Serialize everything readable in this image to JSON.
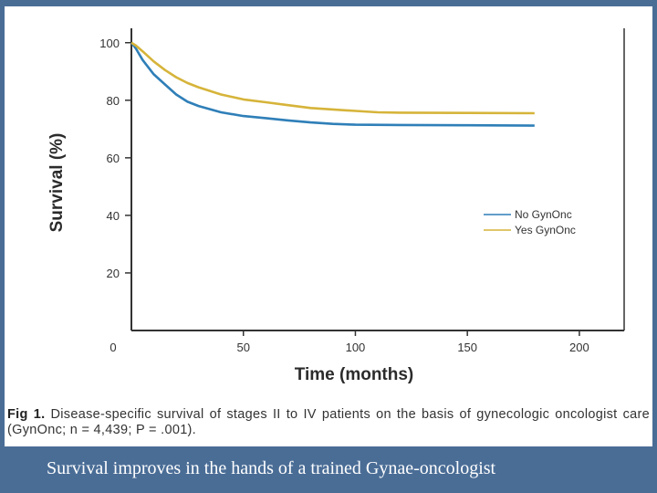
{
  "chart_data": {
    "type": "line",
    "title": "",
    "xlabel": "Time (months)",
    "ylabel": "Survival (%)",
    "xlim": [
      0,
      220
    ],
    "ylim": [
      0,
      105
    ],
    "xticks": [
      "0",
      "50",
      "100",
      "150",
      "200"
    ],
    "yticks": [
      "20",
      "40",
      "60",
      "80",
      "100"
    ],
    "legend_position": "right",
    "series": [
      {
        "name": "No GynOnc",
        "color": "#2f7fb8",
        "x": [
          0,
          2,
          5,
          10,
          15,
          20,
          25,
          30,
          40,
          50,
          60,
          70,
          80,
          90,
          100,
          120,
          150,
          180
        ],
        "y": [
          100,
          98,
          94,
          89,
          85.5,
          82,
          79.5,
          78,
          75.8,
          74.5,
          73.8,
          73,
          72.3,
          71.8,
          71.5,
          71.4,
          71.3,
          71.2
        ]
      },
      {
        "name": "Yes GynOnc",
        "color": "#d6b43a",
        "x": [
          0,
          2,
          5,
          10,
          15,
          20,
          25,
          30,
          40,
          50,
          60,
          70,
          80,
          90,
          100,
          110,
          120,
          150,
          180
        ],
        "y": [
          100,
          99,
          97,
          93.5,
          90.5,
          88,
          86,
          84.5,
          82,
          80.3,
          79.3,
          78.3,
          77.3,
          76.8,
          76.3,
          75.8,
          75.7,
          75.6,
          75.5
        ]
      }
    ]
  },
  "caption": {
    "fig_label": "Fig 1.",
    "text": "Disease-specific survival of stages II to IV patients on the basis of gynecologic oncologist care (GynOnc; n = 4,439; P = .001)."
  },
  "slide": {
    "footer": "Survival improves in the hands of a trained Gynae-oncologist"
  }
}
